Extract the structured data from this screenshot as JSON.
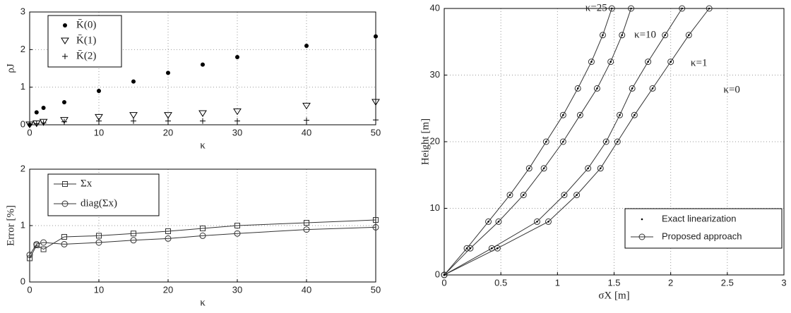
{
  "chart_data": [
    {
      "type": "scatter",
      "xlabel": "κ",
      "ylabel": "ρJ",
      "x": [
        0,
        1,
        2,
        5,
        10,
        15,
        20,
        25,
        30,
        40,
        50
      ],
      "series": [
        {
          "name": "K̄(0)",
          "marker": "dot",
          "color": "#000000",
          "values": [
            0,
            0.33,
            0.45,
            0.6,
            0.9,
            1.15,
            1.38,
            1.6,
            1.8,
            2.1,
            2.35
          ]
        },
        {
          "name": "K̄(1)",
          "marker": "triangle",
          "color": "#000000",
          "values": [
            0,
            0.03,
            0.07,
            0.12,
            0.2,
            0.25,
            0.25,
            0.3,
            0.35,
            0.5,
            0.6
          ]
        },
        {
          "name": "K̄(2)",
          "marker": "plus",
          "color": "#000000",
          "values": [
            0.02,
            0.03,
            0.05,
            0.08,
            0.1,
            0.1,
            0.1,
            0.1,
            0.1,
            0.12,
            0.13
          ]
        }
      ],
      "xlim": [
        0,
        50
      ],
      "xticks": [
        0,
        10,
        20,
        30,
        40,
        50
      ],
      "ylim": [
        0,
        3
      ],
      "yticks": [
        0,
        1,
        2,
        3
      ],
      "grid": true
    },
    {
      "type": "line",
      "xlabel": "κ",
      "ylabel": "Error [%]",
      "x": [
        0,
        1,
        2,
        5,
        10,
        15,
        20,
        25,
        30,
        40,
        50
      ],
      "series": [
        {
          "name": "Σx",
          "marker": "square",
          "color": "#333333",
          "values": [
            0.42,
            0.65,
            0.58,
            0.8,
            0.82,
            0.86,
            0.9,
            0.95,
            1.0,
            1.05,
            1.1
          ]
        },
        {
          "name": "diag(Σx)",
          "marker": "circle",
          "color": "#333333",
          "values": [
            0.48,
            0.67,
            0.7,
            0.67,
            0.7,
            0.74,
            0.77,
            0.82,
            0.86,
            0.93,
            0.97
          ]
        }
      ],
      "xlim": [
        0,
        50
      ],
      "xticks": [
        0,
        10,
        20,
        30,
        40,
        50
      ],
      "ylim": [
        0,
        2
      ],
      "yticks": [
        0,
        1,
        2
      ],
      "grid": true
    },
    {
      "type": "curves",
      "xlabel": "σX [m]",
      "ylabel": "Height [m]",
      "y": [
        0,
        4,
        8,
        12,
        16,
        20,
        24,
        28,
        32,
        36,
        40
      ],
      "series": [
        {
          "label": "κ=25",
          "x": [
            0,
            0.2,
            0.39,
            0.58,
            0.75,
            0.9,
            1.05,
            1.18,
            1.3,
            1.4,
            1.48
          ]
        },
        {
          "label": "κ=10",
          "x": [
            0,
            0.23,
            0.48,
            0.7,
            0.88,
            1.05,
            1.2,
            1.35,
            1.47,
            1.57,
            1.65
          ]
        },
        {
          "label": "κ=1",
          "x": [
            0,
            0.42,
            0.82,
            1.06,
            1.27,
            1.43,
            1.55,
            1.66,
            1.8,
            1.95,
            2.1
          ]
        },
        {
          "label": "κ=0",
          "x": [
            0,
            0.47,
            0.92,
            1.17,
            1.38,
            1.53,
            1.68,
            1.84,
            2.0,
            2.16,
            2.34
          ]
        }
      ],
      "legend": [
        "Exact linearization",
        "Proposed approach"
      ],
      "color": "#333333",
      "xlim": [
        0,
        3
      ],
      "xticks": [
        0,
        0.5,
        1,
        1.5,
        2,
        2.5,
        3
      ],
      "ylim": [
        0,
        40
      ],
      "yticks": [
        0,
        10,
        20,
        30,
        40
      ],
      "grid": true
    }
  ]
}
